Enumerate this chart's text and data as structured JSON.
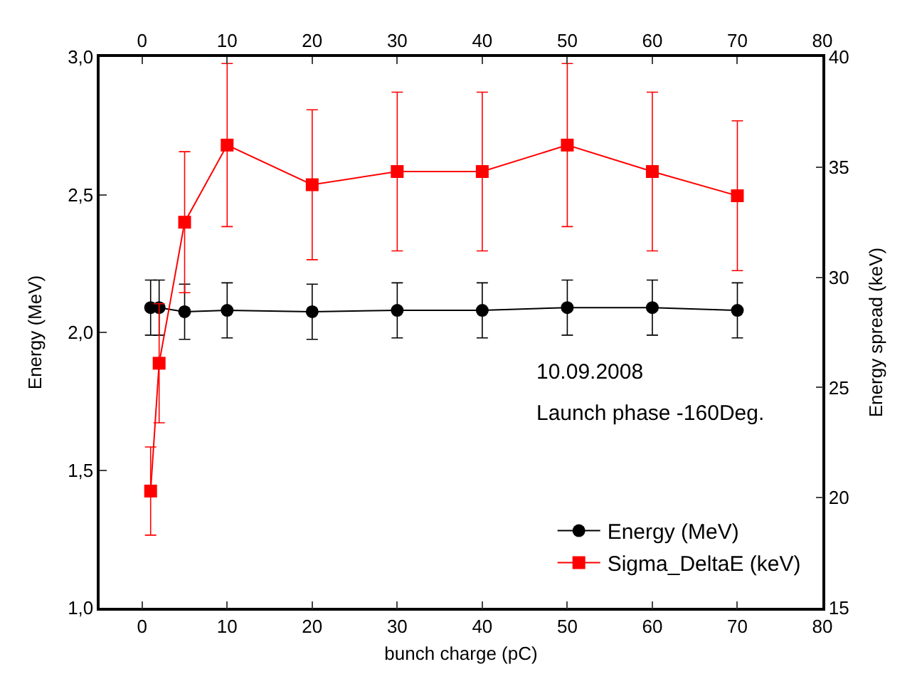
{
  "chart_data": {
    "type": "line",
    "xlabel": "bunch charge (pC)",
    "ylabel": "Energy (MeV)",
    "y2label": "Energy spread (keV)",
    "annotations": [
      "10.09.2008",
      "Launch phase -160Deg."
    ],
    "x": [
      1,
      2,
      5,
      10,
      20,
      30,
      40,
      50,
      60,
      70
    ],
    "series": [
      {
        "name": "Energy (MeV)",
        "color": "#000000",
        "marker": "circle",
        "values": [
          2.09,
          2.09,
          2.075,
          2.08,
          2.075,
          2.08,
          2.08,
          2.09,
          2.09,
          2.08
        ],
        "errors": [
          0.1,
          0.1,
          0.1,
          0.1,
          0.1,
          0.1,
          0.1,
          0.1,
          0.1,
          0.1
        ]
      },
      {
        "name": "Sigma_DeltaE (keV)",
        "color": "#ff0000",
        "marker": "square",
        "axis": "y2",
        "values": [
          20.3,
          26.1,
          32.5,
          36.0,
          34.2,
          34.8,
          34.8,
          36.0,
          34.8,
          33.7
        ],
        "errors": [
          2.0,
          2.7,
          3.2,
          3.7,
          3.4,
          3.6,
          3.6,
          3.7,
          3.6,
          3.4
        ]
      }
    ],
    "xlim": [
      -5,
      80
    ],
    "xticks": [
      0,
      10,
      20,
      30,
      40,
      50,
      60,
      70,
      80
    ],
    "x2lim": [
      -5,
      80
    ],
    "x2ticks": [
      0,
      10,
      20,
      30,
      40,
      50,
      60,
      70,
      80
    ],
    "ylim": [
      1.0,
      3.0
    ],
    "yticks": [
      {
        "value": 1.0,
        "label": "1,0"
      },
      {
        "value": 1.5,
        "label": "1,5"
      },
      {
        "value": 2.0,
        "label": "2,0"
      },
      {
        "value": 2.5,
        "label": "2,5"
      },
      {
        "value": 3.0,
        "label": "3,0"
      }
    ],
    "y2lim": [
      15,
      40
    ],
    "y2ticks": [
      15,
      20,
      25,
      30,
      35,
      40
    ],
    "legend": "bottom right"
  }
}
